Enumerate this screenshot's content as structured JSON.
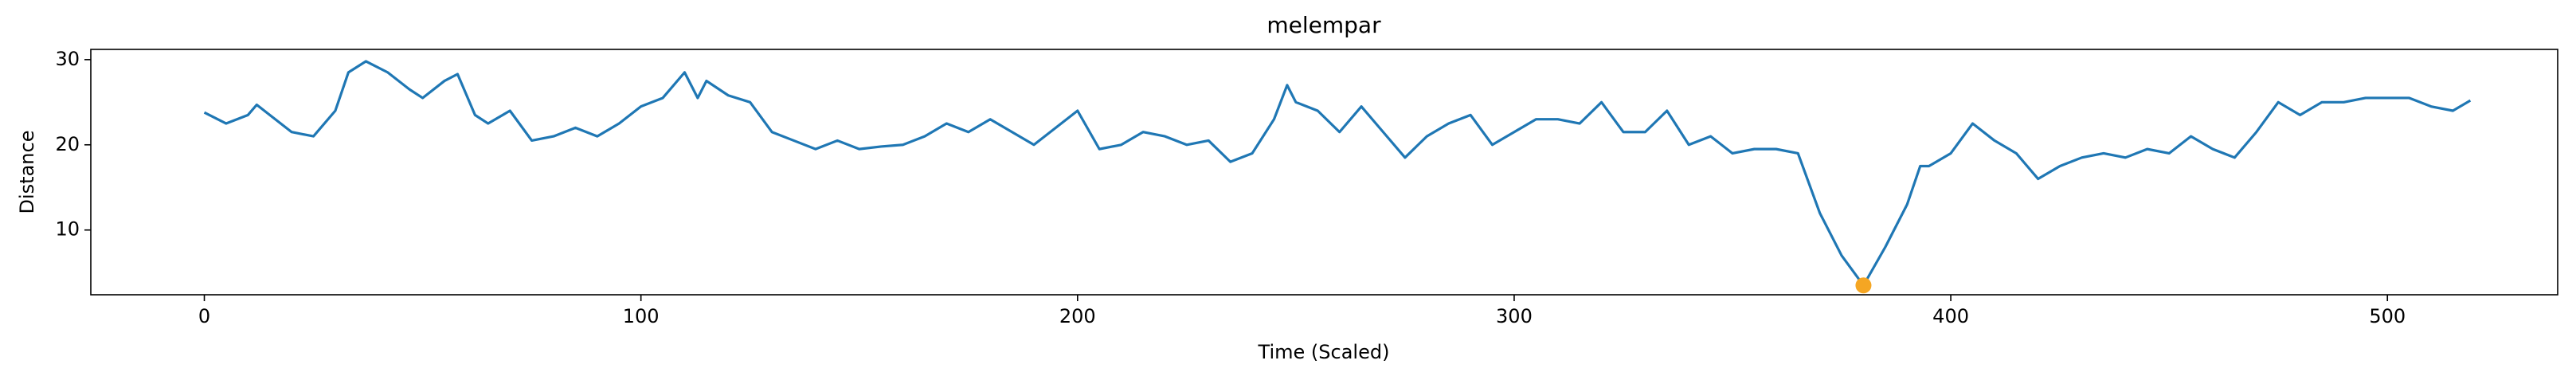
{
  "chart_data": {
    "type": "line",
    "title": "melempar",
    "xlabel": "Time (Scaled)",
    "ylabel": "Distance",
    "x": [
      0,
      5,
      10,
      12,
      15,
      20,
      25,
      30,
      33,
      37,
      42,
      47,
      50,
      55,
      58,
      62,
      65,
      70,
      75,
      80,
      85,
      90,
      95,
      100,
      105,
      110,
      113,
      115,
      120,
      125,
      130,
      135,
      140,
      145,
      150,
      155,
      160,
      165,
      170,
      175,
      180,
      185,
      190,
      195,
      200,
      205,
      210,
      215,
      220,
      225,
      230,
      235,
      240,
      245,
      248,
      250,
      255,
      260,
      265,
      270,
      275,
      280,
      285,
      290,
      295,
      300,
      305,
      310,
      315,
      320,
      325,
      330,
      335,
      340,
      345,
      350,
      355,
      360,
      365,
      370,
      375,
      380,
      385,
      390,
      393,
      395,
      400,
      405,
      410,
      415,
      420,
      425,
      430,
      435,
      440,
      445,
      450,
      455,
      460,
      465,
      470,
      475,
      480,
      485,
      490,
      495,
      500,
      505,
      510,
      515,
      519
    ],
    "series": [
      {
        "color": "#1f77b4",
        "values": [
          23.8,
          22.5,
          23.5,
          24.7,
          23.5,
          21.5,
          21.0,
          24.0,
          28.5,
          29.8,
          28.5,
          26.5,
          25.5,
          27.5,
          28.3,
          23.5,
          22.5,
          24.0,
          20.5,
          21.0,
          22.0,
          21.0,
          22.5,
          24.5,
          25.5,
          28.5,
          25.5,
          27.5,
          25.8,
          25.0,
          21.5,
          20.5,
          19.5,
          20.5,
          19.5,
          19.8,
          20.0,
          21.0,
          22.5,
          21.5,
          23.0,
          21.5,
          20.0,
          22.0,
          24.0,
          19.5,
          20.0,
          21.5,
          21.0,
          20.0,
          20.5,
          18.0,
          19.0,
          23.0,
          27.0,
          25.0,
          24.0,
          21.5,
          24.5,
          21.5,
          18.5,
          21.0,
          22.5,
          23.5,
          20.0,
          21.5,
          23.0,
          23.0,
          22.5,
          25.0,
          21.5,
          21.5,
          24.0,
          20.0,
          21.0,
          19.0,
          19.5,
          19.5,
          19.0,
          12.0,
          7.0,
          3.5,
          8.0,
          13.0,
          17.5,
          17.5,
          19.0,
          22.5,
          20.5,
          19.0,
          16.0,
          17.5,
          18.5,
          19.0,
          18.5,
          19.5,
          19.0,
          21.0,
          19.5,
          18.5,
          21.5,
          25.0,
          23.5,
          25.0,
          25.0,
          25.5,
          25.5,
          25.5,
          24.5,
          24.0,
          25.2
        ]
      }
    ],
    "marker": {
      "x": 380,
      "y": 3.5,
      "color": "#f5a623"
    },
    "xlim": [
      -26,
      539
    ],
    "ylim": [
      2.4,
      31.2
    ],
    "xticks": [
      0,
      100,
      200,
      300,
      400,
      500
    ],
    "yticks": [
      10,
      20,
      30
    ]
  }
}
